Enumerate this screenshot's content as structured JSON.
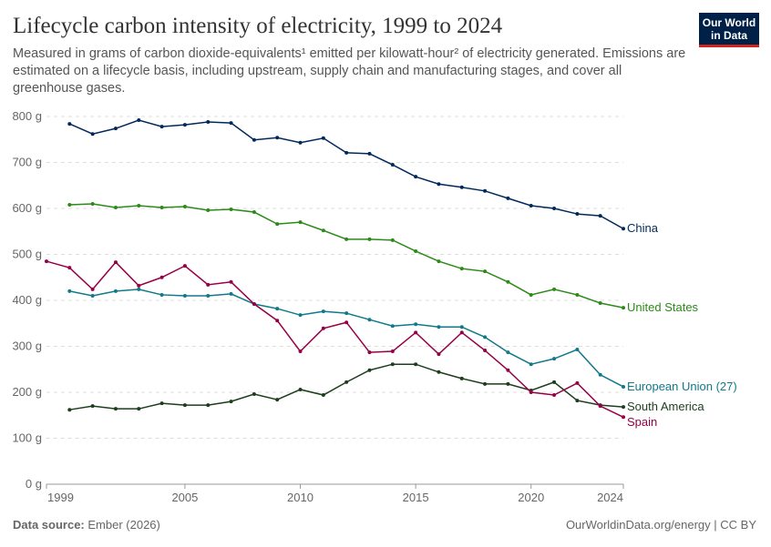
{
  "chart_data": {
    "type": "line",
    "title": "Lifecycle carbon intensity of electricity, 1999 to 2024",
    "subtitle": "Measured in grams of carbon dioxide-equivalents¹ emitted per kilowatt-hour² of electricity generated. Emissions are estimated on a lifecycle basis, including upstream, supply chain and manufacturing stages, and cover all greenhouse gases.",
    "logo": [
      "Our World",
      "in Data"
    ],
    "source_label": "Data source:",
    "source": "Ember (2026)",
    "url": "OurWorldinData.org/energy | CC BY",
    "x": [
      1999,
      2000,
      2001,
      2002,
      2003,
      2004,
      2005,
      2006,
      2007,
      2008,
      2009,
      2010,
      2011,
      2012,
      2013,
      2014,
      2015,
      2016,
      2017,
      2018,
      2019,
      2020,
      2021,
      2022,
      2023,
      2024
    ],
    "xlim": [
      1999,
      2024
    ],
    "xticks": [
      1999,
      2005,
      2010,
      2015,
      2020,
      2024
    ],
    "ylim": [
      0,
      800
    ],
    "yticks": [
      {
        "value": 0,
        "label": "0 g"
      },
      {
        "value": 100,
        "label": "100 g"
      },
      {
        "value": 200,
        "label": "200 g"
      },
      {
        "value": 300,
        "label": "300 g"
      },
      {
        "value": 400,
        "label": "400 g"
      },
      {
        "value": 500,
        "label": "500 g"
      },
      {
        "value": 600,
        "label": "600 g"
      },
      {
        "value": 700,
        "label": "700 g"
      },
      {
        "value": 800,
        "label": "800 g"
      }
    ],
    "grid": true,
    "series": [
      {
        "name": "China",
        "color": "#00295b",
        "values": [
          null,
          784,
          762,
          774,
          792,
          778,
          782,
          788,
          786,
          749,
          754,
          743,
          753,
          721,
          719,
          695,
          669,
          653,
          646,
          638,
          622,
          606,
          600,
          588,
          584,
          556
        ]
      },
      {
        "name": "United States",
        "color": "#2c8a19",
        "values": [
          null,
          608,
          610,
          602,
          606,
          602,
          604,
          596,
          598,
          592,
          566,
          570,
          552,
          533,
          533,
          531,
          507,
          485,
          469,
          463,
          440,
          412,
          424,
          412,
          394,
          384
        ]
      },
      {
        "name": "European Union (27)",
        "color": "#11798a",
        "values": [
          null,
          420,
          410,
          420,
          424,
          412,
          410,
          410,
          414,
          392,
          382,
          368,
          376,
          372,
          358,
          344,
          348,
          342,
          342,
          320,
          287,
          261,
          273,
          293,
          238,
          212
        ]
      },
      {
        "name": "South America",
        "color": "#1d3d1d",
        "values": [
          null,
          162,
          170,
          164,
          164,
          176,
          172,
          172,
          180,
          196,
          184,
          206,
          194,
          222,
          248,
          261,
          261,
          244,
          230,
          218,
          218,
          204,
          222,
          182,
          172,
          168
        ]
      },
      {
        "name": "Spain",
        "color": "#970046",
        "values": [
          485,
          471,
          424,
          483,
          432,
          450,
          475,
          434,
          440,
          392,
          356,
          289,
          339,
          352,
          287,
          289,
          330,
          283,
          330,
          291,
          248,
          200,
          194,
          220,
          170,
          146
        ]
      }
    ]
  }
}
